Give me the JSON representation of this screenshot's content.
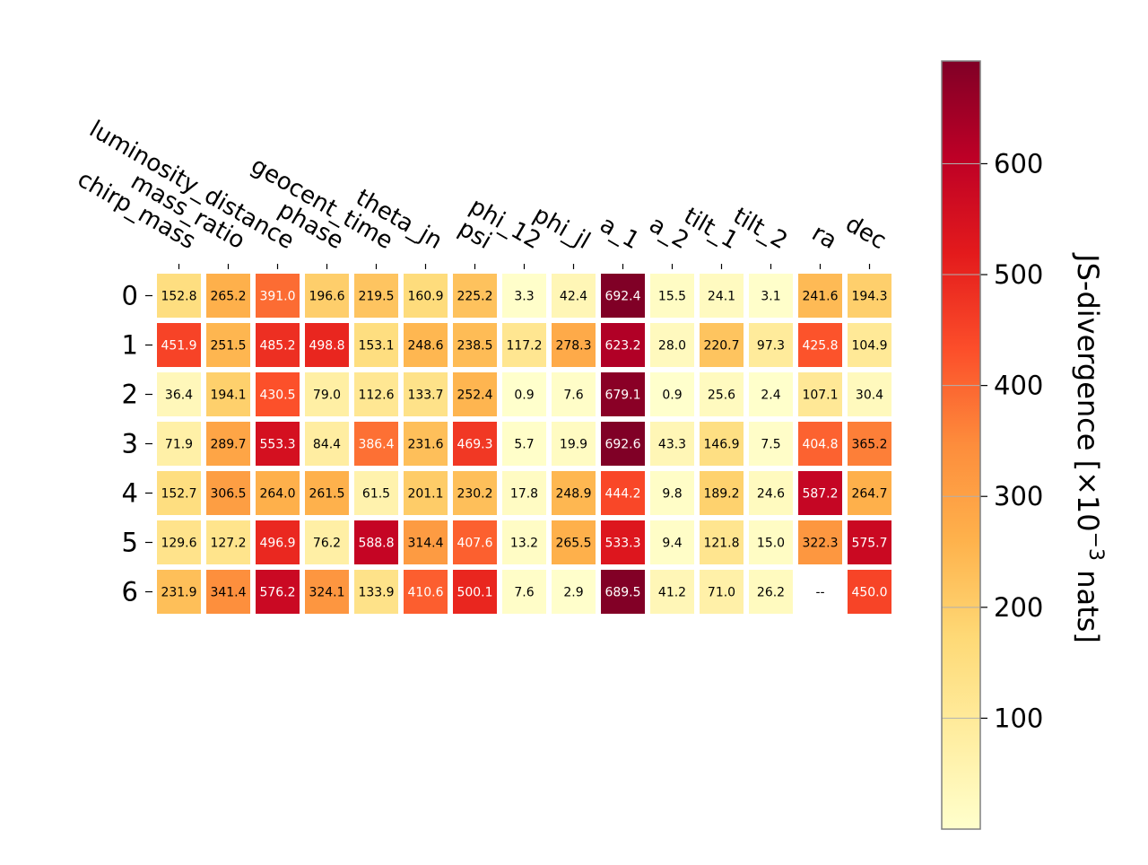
{
  "chart_data": {
    "type": "heatmap",
    "title": "",
    "xlabel": "",
    "ylabel": "",
    "x_categories": [
      "chirp_mass",
      "mass_ratio",
      "luminosity_distance",
      "phase",
      "geocent_time",
      "theta_jn",
      "psi",
      "phi_12",
      "phi_jl",
      "a_1",
      "a_2",
      "tilt_1",
      "tilt_2",
      "ra",
      "dec"
    ],
    "y_categories": [
      "0",
      "1",
      "2",
      "3",
      "4",
      "5",
      "6"
    ],
    "cells": [
      [
        "152.8",
        "265.2",
        "391.0",
        "196.6",
        "219.5",
        "160.9",
        "225.2",
        "3.3",
        "42.4",
        "692.4",
        "15.5",
        "24.1",
        "3.1",
        "241.6",
        "194.3"
      ],
      [
        "451.9",
        "251.5",
        "485.2",
        "498.8",
        "153.1",
        "248.6",
        "238.5",
        "117.2",
        "278.3",
        "623.2",
        "28.0",
        "220.7",
        "97.3",
        "425.8",
        "104.9"
      ],
      [
        "36.4",
        "194.1",
        "430.5",
        "79.0",
        "112.6",
        "133.7",
        "252.4",
        "0.9",
        "7.6",
        "679.1",
        "0.9",
        "25.6",
        "2.4",
        "107.1",
        "30.4"
      ],
      [
        "71.9",
        "289.7",
        "553.3",
        "84.4",
        "386.4",
        "231.6",
        "469.3",
        "5.7",
        "19.9",
        "692.6",
        "43.3",
        "146.9",
        "7.5",
        "404.8",
        "365.2"
      ],
      [
        "152.7",
        "306.5",
        "264.0",
        "261.5",
        "61.5",
        "201.1",
        "230.2",
        "17.8",
        "248.9",
        "444.2",
        "9.8",
        "189.2",
        "24.6",
        "587.2",
        "264.7"
      ],
      [
        "129.6",
        "127.2",
        "496.9",
        "76.2",
        "588.8",
        "314.4",
        "407.6",
        "13.2",
        "265.5",
        "533.3",
        "9.4",
        "121.8",
        "15.0",
        "322.3",
        "575.7"
      ],
      [
        "231.9",
        "341.4",
        "576.2",
        "324.1",
        "133.9",
        "410.6",
        "500.1",
        "7.6",
        "2.9",
        "689.5",
        "41.2",
        "71.0",
        "26.2",
        "--",
        "450.0"
      ]
    ],
    "missing_marker": "--",
    "colormap": "YlOrRd",
    "colorbar": {
      "label_main": "JS-divergence [×10",
      "label_sup": "−3",
      "label_tail": " nats]",
      "range": [
        0,
        692.6
      ],
      "ticks": [
        "100",
        "200",
        "300",
        "400",
        "500",
        "600"
      ],
      "grid": true
    },
    "grid": false
  }
}
